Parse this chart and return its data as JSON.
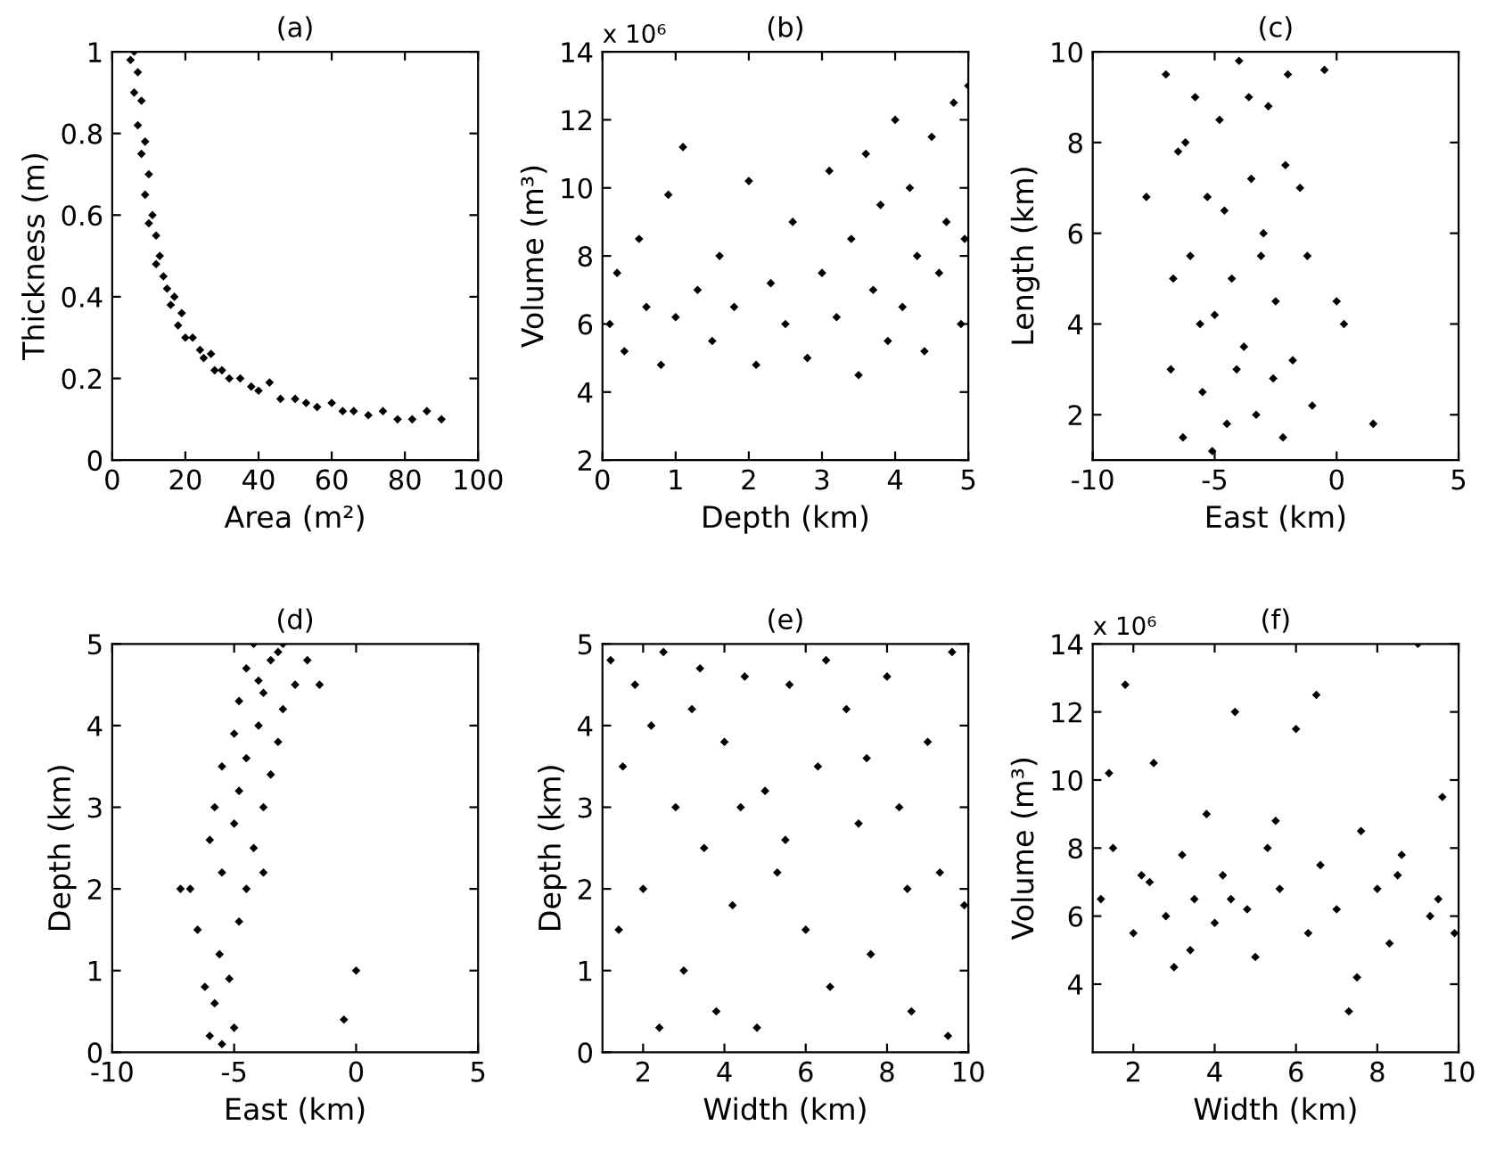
{
  "chart_data": [
    {
      "type": "scatter",
      "title": "(a)",
      "xlabel": "Area (m²)",
      "ylabel": "Thickness (m)",
      "xlim": [
        0,
        100
      ],
      "ylim": [
        0,
        1
      ],
      "xticks": [
        0,
        20,
        40,
        60,
        80,
        100
      ],
      "yticks": [
        0,
        0.2,
        0.4,
        0.6,
        0.8,
        1
      ],
      "marker": "diamond",
      "grid": false,
      "series": [
        {
          "color": "#000000",
          "x": [
            5,
            6,
            6,
            7,
            7,
            8,
            8,
            9,
            9,
            10,
            10,
            11,
            12,
            12,
            13,
            14,
            15,
            16,
            17,
            18,
            19,
            20,
            22,
            24,
            25,
            27,
            28,
            30,
            32,
            35,
            38,
            40,
            43,
            46,
            50,
            53,
            56,
            60,
            63,
            66,
            70,
            74,
            78,
            82,
            86,
            90
          ],
          "values": [
            0.98,
            1.0,
            0.9,
            0.95,
            0.82,
            0.88,
            0.75,
            0.78,
            0.65,
            0.7,
            0.58,
            0.6,
            0.55,
            0.48,
            0.5,
            0.45,
            0.42,
            0.38,
            0.4,
            0.33,
            0.36,
            0.3,
            0.3,
            0.27,
            0.25,
            0.26,
            0.22,
            0.22,
            0.2,
            0.2,
            0.18,
            0.17,
            0.19,
            0.15,
            0.15,
            0.14,
            0.13,
            0.14,
            0.12,
            0.12,
            0.11,
            0.12,
            0.1,
            0.1,
            0.12,
            0.1
          ]
        }
      ]
    },
    {
      "type": "scatter",
      "title": "(b)",
      "xlabel": "Depth (km)",
      "ylabel": "Volume (m³)",
      "annotations": [
        "x 10⁶"
      ],
      "xlim": [
        0,
        5
      ],
      "ylim": [
        2,
        14
      ],
      "xticks": [
        0,
        1,
        2,
        3,
        4,
        5
      ],
      "yticks": [
        2,
        4,
        6,
        8,
        10,
        12,
        14
      ],
      "marker": "diamond",
      "grid": false,
      "series": [
        {
          "color": "#000000",
          "x": [
            0.1,
            0.2,
            0.3,
            0.5,
            0.6,
            0.8,
            0.9,
            1.0,
            1.1,
            1.3,
            1.5,
            1.6,
            1.8,
            2.0,
            2.1,
            2.3,
            2.5,
            2.6,
            2.8,
            3.0,
            3.1,
            3.2,
            3.4,
            3.5,
            3.6,
            3.7,
            3.8,
            3.9,
            4.0,
            4.1,
            4.2,
            4.3,
            4.4,
            4.5,
            4.6,
            4.7,
            4.8,
            4.9,
            5.0,
            4.95
          ],
          "values": [
            6.0,
            7.5,
            5.2,
            8.5,
            6.5,
            4.8,
            9.8,
            6.2,
            11.2,
            7.0,
            5.5,
            8.0,
            6.5,
            10.2,
            4.8,
            7.2,
            6.0,
            9.0,
            5.0,
            7.5,
            10.5,
            6.2,
            8.5,
            4.5,
            11.0,
            7.0,
            9.5,
            5.5,
            12.0,
            6.5,
            10.0,
            8.0,
            5.2,
            11.5,
            7.5,
            9.0,
            12.5,
            6.0,
            13.0,
            8.5
          ]
        }
      ]
    },
    {
      "type": "scatter",
      "title": "(c)",
      "xlabel": "East (km)",
      "ylabel": "Length (km)",
      "xlim": [
        -10,
        5
      ],
      "ylim": [
        1,
        10
      ],
      "xticks": [
        -10,
        -5,
        0,
        5
      ],
      "yticks": [
        2,
        4,
        6,
        8,
        10
      ],
      "marker": "diamond",
      "grid": false,
      "series": [
        {
          "color": "#000000",
          "x": [
            -7,
            -6.8,
            -6.5,
            -6.3,
            -6,
            -5.8,
            -5.5,
            -5.3,
            -5,
            -4.8,
            -4.5,
            -4.3,
            -4,
            -3.8,
            -3.5,
            -3.3,
            -3,
            -2.8,
            -2.5,
            -2.2,
            -2,
            -1.8,
            -1.5,
            -1.2,
            -1,
            0,
            0.3,
            1.5,
            -6.7,
            -6.2,
            -5.6,
            -5.1,
            -4.6,
            -4.1,
            -3.6,
            -3.1,
            -2.6,
            -2.1,
            -7.8,
            -0.5
          ],
          "values": [
            9.5,
            3.0,
            7.8,
            1.5,
            5.5,
            9.0,
            2.5,
            6.8,
            4.2,
            8.5,
            1.8,
            5.0,
            9.8,
            3.5,
            7.2,
            2.0,
            6.0,
            8.8,
            4.5,
            1.5,
            9.5,
            3.2,
            7.0,
            5.5,
            2.2,
            4.5,
            4.0,
            1.8,
            5.0,
            8.0,
            4.0,
            1.2,
            6.5,
            3.0,
            9.0,
            5.5,
            2.8,
            7.5,
            6.8,
            9.6
          ]
        }
      ]
    },
    {
      "type": "scatter",
      "title": "(d)",
      "xlabel": "East (km)",
      "ylabel": "Depth (km)",
      "xlim": [
        -10,
        5
      ],
      "ylim": [
        0,
        5
      ],
      "xticks": [
        -10,
        -5,
        0,
        5
      ],
      "yticks": [
        0,
        1,
        2,
        3,
        4,
        5
      ],
      "marker": "diamond",
      "grid": false,
      "series": [
        {
          "color": "#000000",
          "x": [
            -6,
            -5.5,
            -5,
            -6.2,
            -5.8,
            -5.2,
            -6.5,
            -5.6,
            -4.8,
            -6.8,
            -5.5,
            -4.5,
            -6,
            -5,
            -4.2,
            -5.8,
            -4.8,
            -3.8,
            -5.5,
            -4.5,
            -3.5,
            -5,
            -4,
            -3.2,
            -4.8,
            -3.8,
            -3,
            -4.5,
            -3.5,
            -2.5,
            -4.2,
            -3.2,
            -2,
            -4,
            -3,
            -1.5,
            0,
            -0.5,
            -7.2,
            -3.8
          ],
          "values": [
            0.2,
            0.1,
            0.3,
            0.8,
            0.6,
            0.9,
            1.5,
            1.2,
            1.6,
            2.0,
            2.2,
            2.0,
            2.6,
            2.8,
            2.5,
            3.0,
            3.2,
            3.0,
            3.5,
            3.6,
            3.4,
            3.9,
            4.0,
            3.8,
            4.3,
            4.4,
            4.2,
            4.7,
            4.8,
            4.5,
            5.0,
            4.9,
            4.8,
            4.55,
            5.0,
            4.5,
            1.0,
            0.4,
            2.0,
            2.2
          ]
        }
      ]
    },
    {
      "type": "scatter",
      "title": "(e)",
      "xlabel": "Width (km)",
      "ylabel": "Depth (km)",
      "xlim": [
        1,
        10
      ],
      "ylim": [
        0,
        5
      ],
      "xticks": [
        2,
        4,
        6,
        8,
        10
      ],
      "yticks": [
        0,
        1,
        2,
        3,
        4,
        5
      ],
      "marker": "diamond",
      "grid": false,
      "series": [
        {
          "color": "#000000",
          "x": [
            1.2,
            1.5,
            1.8,
            2,
            2.2,
            2.5,
            2.8,
            3,
            3.2,
            3.5,
            3.8,
            4,
            4.2,
            4.5,
            4.8,
            5,
            5.3,
            5.6,
            6,
            6.3,
            6.6,
            7,
            7.3,
            7.6,
            8,
            8.3,
            8.6,
            9,
            9.3,
            9.6,
            9.9,
            1.4,
            2.4,
            3.4,
            4.4,
            5.5,
            6.5,
            7.5,
            8.5,
            9.5
          ],
          "values": [
            4.8,
            3.5,
            4.5,
            2.0,
            4.0,
            4.9,
            3.0,
            1.0,
            4.2,
            2.5,
            0.5,
            3.8,
            1.8,
            4.6,
            0.3,
            3.2,
            2.2,
            4.5,
            1.5,
            3.5,
            0.8,
            4.2,
            2.8,
            1.2,
            4.6,
            3.0,
            0.5,
            3.8,
            2.2,
            4.9,
            1.8,
            1.5,
            0.3,
            4.7,
            3.0,
            2.6,
            4.8,
            3.6,
            2.0,
            0.2
          ]
        }
      ]
    },
    {
      "type": "scatter",
      "title": "(f)",
      "xlabel": "Width (km)",
      "ylabel": "Volume (m³)",
      "annotations": [
        "x 10⁶"
      ],
      "xlim": [
        1,
        10
      ],
      "ylim": [
        2,
        14
      ],
      "xticks": [
        2,
        4,
        6,
        8,
        10
      ],
      "yticks": [
        4,
        6,
        8,
        10,
        12,
        14
      ],
      "marker": "diamond",
      "grid": false,
      "series": [
        {
          "color": "#000000",
          "x": [
            1.2,
            1.5,
            1.8,
            2,
            2.2,
            2.5,
            2.8,
            3,
            3.2,
            3.5,
            3.8,
            4,
            4.2,
            4.5,
            4.8,
            5,
            5.3,
            5.6,
            6,
            6.3,
            6.6,
            7,
            7.3,
            7.6,
            8,
            8.3,
            8.6,
            9,
            9.3,
            9.6,
            9.9,
            1.4,
            2.4,
            3.4,
            4.4,
            5.5,
            6.5,
            7.5,
            8.5,
            9.5
          ],
          "values": [
            6.5,
            8.0,
            12.8,
            5.5,
            7.2,
            10.5,
            6.0,
            4.5,
            7.8,
            6.5,
            9.0,
            5.8,
            7.2,
            12.0,
            6.2,
            4.8,
            8.0,
            6.8,
            11.5,
            5.5,
            7.5,
            6.2,
            3.2,
            8.5,
            6.8,
            5.2,
            7.8,
            14.0,
            6.0,
            9.5,
            5.5,
            10.2,
            7.0,
            5.0,
            6.5,
            8.8,
            12.5,
            4.2,
            7.2,
            6.5
          ]
        }
      ]
    }
  ]
}
